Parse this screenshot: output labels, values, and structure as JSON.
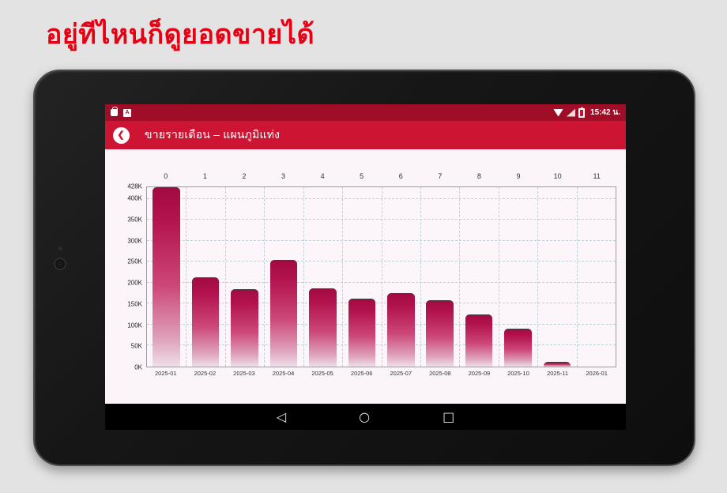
{
  "header": {
    "headline": "อยู่ทีไหนก็ดูยอดขายได้"
  },
  "device": {
    "status_bar": {
      "time": "15:42 น.",
      "left_icons": [
        "bag-icon",
        "a-badge-icon"
      ],
      "right_icons": [
        "wifi-icon",
        "cell-signal-icon",
        "battery-icon"
      ],
      "a_badge_text": "A"
    },
    "app_bar": {
      "back_icon": "❮",
      "title": "ขายรายเดือน – แผนภูมิแท่ง"
    },
    "nav_bar": {
      "back": "◁",
      "home": "○",
      "recents": "□"
    }
  },
  "colors": {
    "headline": "#e60014",
    "status_bar_bg": "#a00d26",
    "app_bar_bg": "#ce1433",
    "bar_top": "#a30a42",
    "bar_bottom": "#eedfe8",
    "grid": "#bdd2d8",
    "content_bg": "#fbf4f8"
  },
  "chart_data": {
    "type": "bar",
    "title": "ขายรายเดือน – แผนภูมิแท่ง",
    "categories": [
      "2025-01",
      "2025-02",
      "2025-03",
      "2025-04",
      "2025-05",
      "2025-06",
      "2025-07",
      "2025-08",
      "2025-09",
      "2025-10",
      "2025-11",
      "2026-01"
    ],
    "top_axis_labels": [
      "0",
      "1",
      "2",
      "3",
      "4",
      "5",
      "6",
      "7",
      "8",
      "9",
      "10",
      "11"
    ],
    "values": [
      428,
      214,
      184,
      254,
      187,
      162,
      176,
      158,
      124,
      90,
      11,
      0
    ],
    "unit": "K",
    "ylim": [
      0,
      428
    ],
    "yticks": [
      0,
      50,
      100,
      150,
      200,
      250,
      300,
      350,
      400,
      428
    ],
    "ytick_labels": [
      "0K",
      "50K",
      "100K",
      "150K",
      "200K",
      "250K",
      "300K",
      "350K",
      "400K",
      "428K"
    ],
    "grid": true,
    "legend": false,
    "xlabel": "",
    "ylabel": ""
  }
}
